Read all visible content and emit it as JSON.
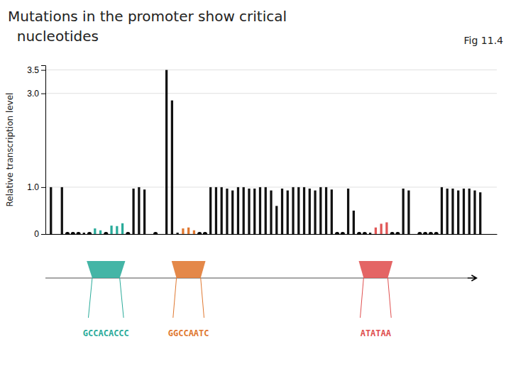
{
  "chart_data": {
    "type": "bar",
    "title": "Mutations in the promoter show critical",
    "subtitle": "  nucleotides",
    "y_label": "Relative transcription level",
    "xlim": [
      0,
      82
    ],
    "ylim": [
      0,
      3.6
    ],
    "yticks": [
      0,
      {
        "value": 1.0,
        "label": "1.0"
      },
      {
        "value": 3.0,
        "label": "3.0"
      },
      3.5
    ],
    "grid": true,
    "tick_labels": "y",
    "series": [
      {
        "type": "bar",
        "x": [
          1,
          3,
          5,
          6,
          7,
          8,
          9,
          10,
          11,
          12,
          13,
          14,
          15,
          16,
          17,
          18,
          20,
          22,
          23,
          24,
          25,
          26,
          27,
          28,
          29,
          30,
          31,
          32,
          33,
          34,
          35,
          36,
          37,
          38,
          39,
          40,
          41,
          42,
          43,
          44,
          45,
          46,
          47,
          48,
          49,
          50,
          51,
          52,
          53,
          54,
          55,
          56,
          57,
          58,
          59,
          60,
          61,
          62,
          63,
          64,
          65,
          66,
          68,
          69,
          70,
          71,
          72,
          73,
          74,
          75,
          76,
          77,
          78,
          79
        ],
        "values": [
          1.0,
          1.0,
          0.03,
          0.03,
          0.03,
          0.03,
          0.12,
          0.08,
          0.03,
          0.18,
          0.17,
          0.23,
          0.03,
          0.97,
          1.0,
          0.95,
          0.03,
          3.5,
          2.85,
          0.03,
          0.12,
          0.14,
          0.08,
          0.03,
          0.03,
          1.0,
          1.0,
          1.0,
          0.97,
          0.93,
          1.0,
          1.0,
          0.97,
          0.97,
          1.0,
          1.0,
          0.93,
          0.6,
          0.97,
          0.93,
          1.0,
          1.0,
          1.0,
          0.97,
          0.93,
          1.0,
          1.0,
          0.95,
          0.03,
          0.03,
          0.97,
          0.5,
          0.03,
          0.03,
          0.03,
          0.14,
          0.22,
          0.25,
          0.03,
          0.03,
          0.97,
          0.93,
          0.03,
          0.03,
          0.03,
          0.03,
          1.0,
          0.97,
          0.97,
          0.93,
          0.97,
          0.97,
          0.93,
          0.89
        ],
        "colors": [
          "#111111",
          "#111111",
          "#111111",
          "#111111",
          "#111111",
          "#111111",
          "#2aab9a",
          "#2aab9a",
          "#111111",
          "#2aab9a",
          "#2aab9a",
          "#2aab9a",
          "#111111",
          "#111111",
          "#111111",
          "#111111",
          "#111111",
          "#111111",
          "#111111",
          "#111111",
          "#e07830",
          "#e07830",
          "#e07830",
          "#111111",
          "#111111",
          "#111111",
          "#111111",
          "#111111",
          "#111111",
          "#111111",
          "#111111",
          "#111111",
          "#111111",
          "#111111",
          "#111111",
          "#111111",
          "#111111",
          "#111111",
          "#111111",
          "#111111",
          "#111111",
          "#111111",
          "#111111",
          "#111111",
          "#111111",
          "#111111",
          "#111111",
          "#111111",
          "#111111",
          "#111111",
          "#111111",
          "#111111",
          "#111111",
          "#111111",
          "#111111",
          "#e05555",
          "#e05555",
          "#e05555",
          "#111111",
          "#111111",
          "#111111",
          "#111111",
          "#111111",
          "#111111",
          "#111111",
          "#111111",
          "#111111",
          "#111111",
          "#111111",
          "#111111",
          "#111111",
          "#111111",
          "#111111",
          "#111111"
        ]
      },
      {
        "type": "scatter",
        "marker": "circle",
        "color": "#000000",
        "x": [
          4,
          5,
          6,
          8,
          11,
          15,
          20,
          28,
          29,
          53,
          54,
          57,
          58,
          63,
          64,
          68,
          69,
          70,
          71
        ],
        "values": [
          0,
          0,
          0,
          0,
          0,
          0,
          0,
          0,
          0,
          0,
          0,
          0,
          0,
          0,
          0,
          0,
          0,
          0,
          0
        ]
      }
    ],
    "annotations": [
      {
        "text": "Fig 11.4"
      },
      {
        "text": "GCCACACCC",
        "x": 11,
        "span": [
          8.5,
          13.5
        ],
        "color": "#2aab9a"
      },
      {
        "text": "GGCCAATC",
        "x": 26,
        "span": [
          23.8,
          28.2
        ],
        "color": "#e07830"
      },
      {
        "text": "ATATAA",
        "x": 60,
        "span": [
          57.8,
          62.2
        ],
        "color": "#e05050"
      }
    ]
  }
}
